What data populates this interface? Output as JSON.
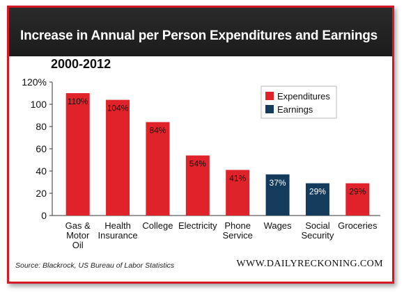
{
  "header": {
    "title": "Increase in Annual per Person Expenditures and Earnings"
  },
  "subtitle": "2000-2012",
  "footer": {
    "source": "Source: Blackrock, US Bureau of Labor Statistics",
    "site": "WWW.DAILYRECKONING.COM"
  },
  "colors": {
    "expenditures": "#e0222a",
    "earnings": "#143a5c",
    "brand_red": "#d4182a",
    "title_bg": "#1e1e1e"
  },
  "chart_data": {
    "type": "bar",
    "title": "Increase in Annual per Person Expenditures and Earnings",
    "subtitle": "2000-2012",
    "categories": [
      "Gas & Motor Oil",
      "Health Insurance",
      "College",
      "Electricity",
      "Phone Service",
      "Wages",
      "Social Security",
      "Groceries"
    ],
    "category_lines": [
      [
        "Gas &",
        "Motor",
        "Oil"
      ],
      [
        "Health",
        "Insurance"
      ],
      [
        "College"
      ],
      [
        "Electricity"
      ],
      [
        "Phone",
        "Service"
      ],
      [
        "Wages"
      ],
      [
        "Social",
        "Security"
      ],
      [
        "Groceries"
      ]
    ],
    "values": [
      110,
      104,
      84,
      54,
      41,
      37,
      29,
      29
    ],
    "data_labels": [
      "110%",
      "104%",
      "84%",
      "54%",
      "41%",
      "37%",
      "29%",
      "29%"
    ],
    "series_membership": [
      "Expenditures",
      "Expenditures",
      "Expenditures",
      "Expenditures",
      "Expenditures",
      "Earnings",
      "Earnings",
      "Expenditures"
    ],
    "legend": [
      {
        "name": "Expenditures",
        "color": "#e0222a"
      },
      {
        "name": "Earnings",
        "color": "#143a5c"
      }
    ],
    "legend_position": "top-right",
    "ylim": [
      0,
      120
    ],
    "yticks": [
      0,
      20,
      40,
      60,
      80,
      100,
      120
    ],
    "ytick_labels": [
      "0",
      "20",
      "40",
      "60",
      "80",
      "100",
      "120%"
    ],
    "grid": false
  }
}
